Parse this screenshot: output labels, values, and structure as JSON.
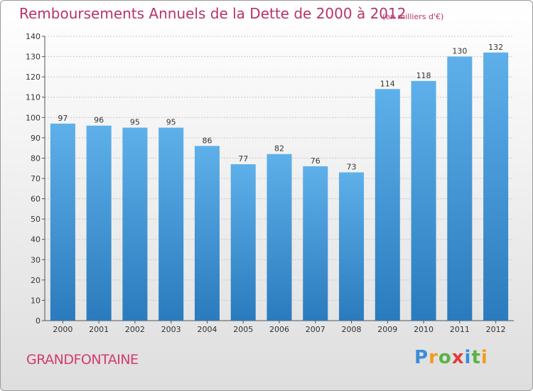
{
  "title": "Remboursements Annuels de la Dette de 2000 à 2012",
  "unit_note": "(en milliers d'€)",
  "commune": "GRANDFONTAINE",
  "logo": {
    "text": "Proxiti",
    "letter_colors": [
      "#3a8ed8",
      "#f29c1f",
      "#5ab345",
      "#e23c3c",
      "#3a8ed8",
      "#5ab345",
      "#f29c1f"
    ]
  },
  "colors": {
    "bar_top": "#5eb0ea",
    "bar_bottom": "#2a7bbd",
    "title": "#b8336a",
    "grid": "#c8c8c8"
  },
  "chart_data": {
    "type": "bar",
    "title": "Remboursements Annuels de la Dette de 2000 à 2012",
    "subtitle": "(en milliers d'€)",
    "xlabel": "",
    "ylabel": "",
    "categories": [
      "2000",
      "2001",
      "2002",
      "2003",
      "2004",
      "2005",
      "2006",
      "2007",
      "2008",
      "2009",
      "2010",
      "2011",
      "2012"
    ],
    "values": [
      97,
      96,
      95,
      95,
      86,
      77,
      82,
      76,
      73,
      114,
      118,
      130,
      132
    ],
    "ylim": [
      0,
      140
    ],
    "yticks": [
      0,
      10,
      20,
      30,
      40,
      50,
      60,
      70,
      80,
      90,
      100,
      110,
      120,
      130,
      140
    ],
    "grid": true,
    "data_labels": true
  }
}
